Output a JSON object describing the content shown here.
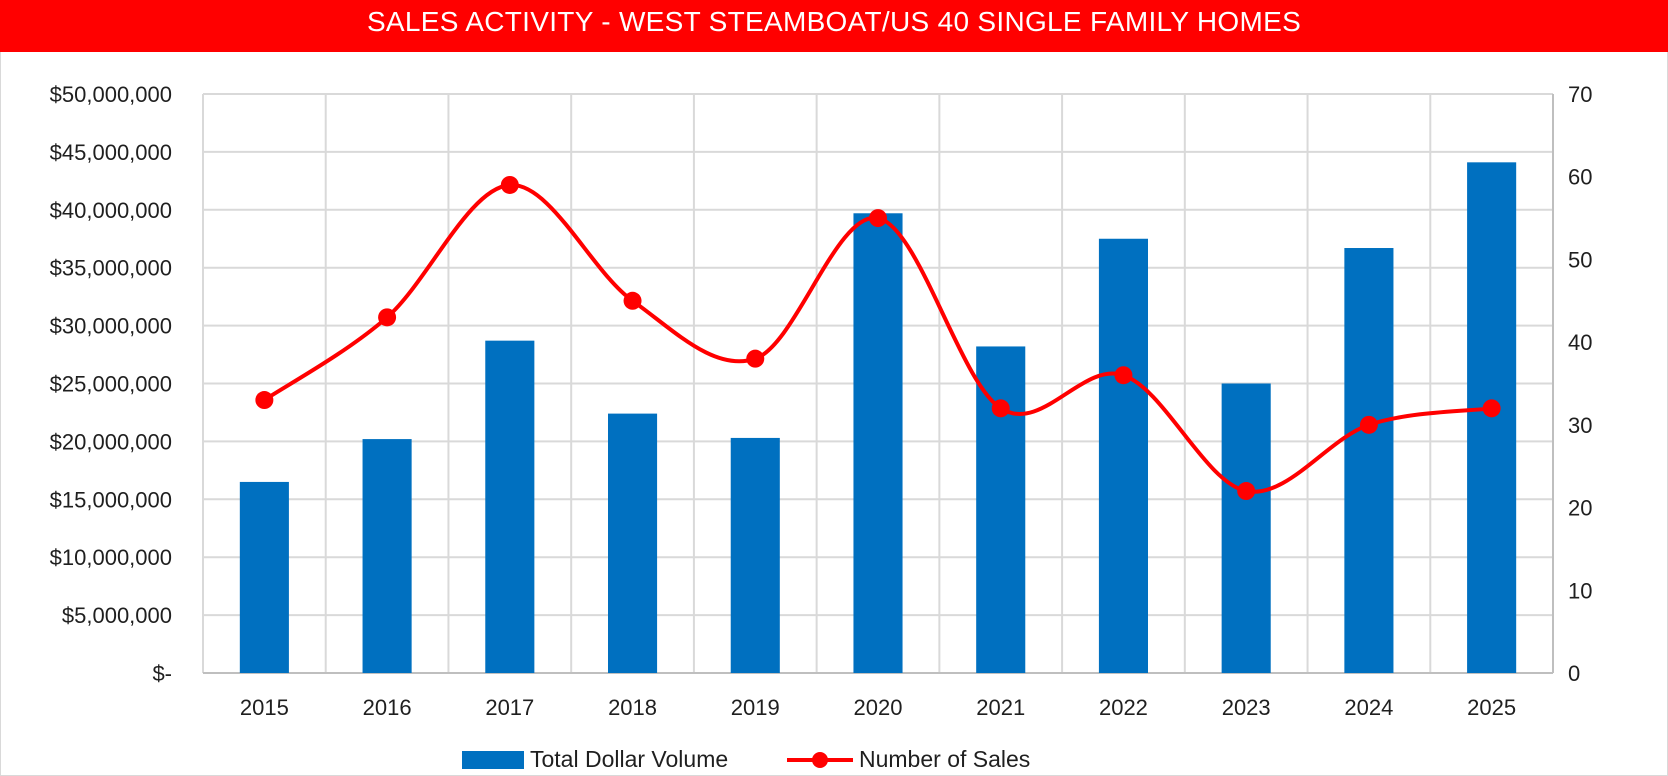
{
  "title": "SALES ACTIVITY - WEST STEAMBOAT/US 40 SINGLE FAMILY HOMES",
  "colors": {
    "title_bg": "#ff0000",
    "bar": "#0070c0",
    "line": "#ff0000",
    "grid": "#d9d9d9"
  },
  "chart_data": {
    "type": "bar",
    "categories": [
      "2015",
      "2016",
      "2017",
      "2018",
      "2019",
      "2020",
      "2021",
      "2022",
      "2023",
      "2024",
      "2025"
    ],
    "series": [
      {
        "name": "Total Dollar Volume",
        "type": "bar",
        "axis": "left",
        "values": [
          16500000,
          20200000,
          28700000,
          22400000,
          20300000,
          39700000,
          28200000,
          37500000,
          25000000,
          36700000,
          44100000
        ]
      },
      {
        "name": "Number of Sales",
        "type": "line",
        "axis": "right",
        "smooth": true,
        "marker": "circle",
        "values": [
          33,
          43,
          59,
          45,
          38,
          55,
          32,
          36,
          22,
          30,
          32
        ]
      }
    ],
    "y_left": {
      "min": 0,
      "max": 50000000,
      "tick_labels": [
        "$-",
        "$5,000,000",
        "$10,000,000",
        "$15,000,000",
        "$20,000,000",
        "$25,000,000",
        "$30,000,000",
        "$35,000,000",
        "$40,000,000",
        "$45,000,000",
        "$50,000,000"
      ]
    },
    "y_right": {
      "min": 0,
      "max": 70,
      "tick_labels": [
        "0",
        "10",
        "20",
        "30",
        "40",
        "50",
        "60",
        "70"
      ]
    },
    "grid": true,
    "legend_position": "bottom"
  }
}
